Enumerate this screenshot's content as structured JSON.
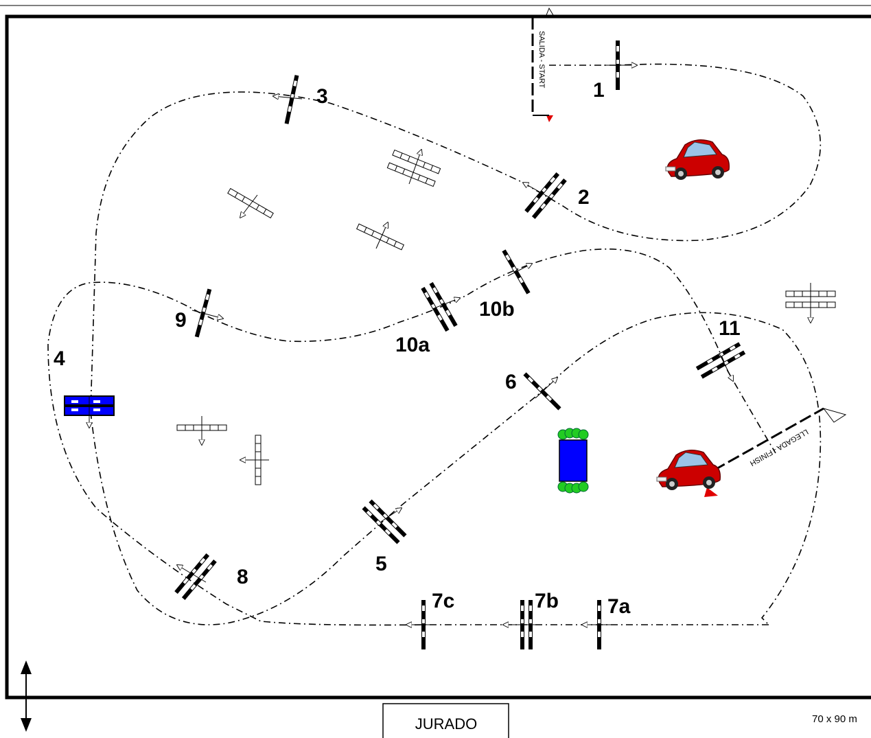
{
  "obstacles": [
    {
      "id": "1",
      "label": "1"
    },
    {
      "id": "2",
      "label": "2"
    },
    {
      "id": "3",
      "label": "3"
    },
    {
      "id": "4",
      "label": "4"
    },
    {
      "id": "5",
      "label": "5"
    },
    {
      "id": "6",
      "label": "6"
    },
    {
      "id": "7a",
      "label": "7a"
    },
    {
      "id": "7b",
      "label": "7b"
    },
    {
      "id": "7c",
      "label": "7c"
    },
    {
      "id": "8",
      "label": "8"
    },
    {
      "id": "9",
      "label": "9"
    },
    {
      "id": "10a",
      "label": "10a"
    },
    {
      "id": "10b",
      "label": "10b"
    },
    {
      "id": "11",
      "label": "11"
    }
  ],
  "start_label": "SALIDA - START",
  "finish_label": "LLEGADA - FINISH",
  "jury_label": "JURADO",
  "dimensions_label": "70 x 90 m",
  "colors": {
    "flag": "#e00000",
    "car": "#cc0000",
    "water": "#0000ff",
    "plants": "#22cc22"
  }
}
